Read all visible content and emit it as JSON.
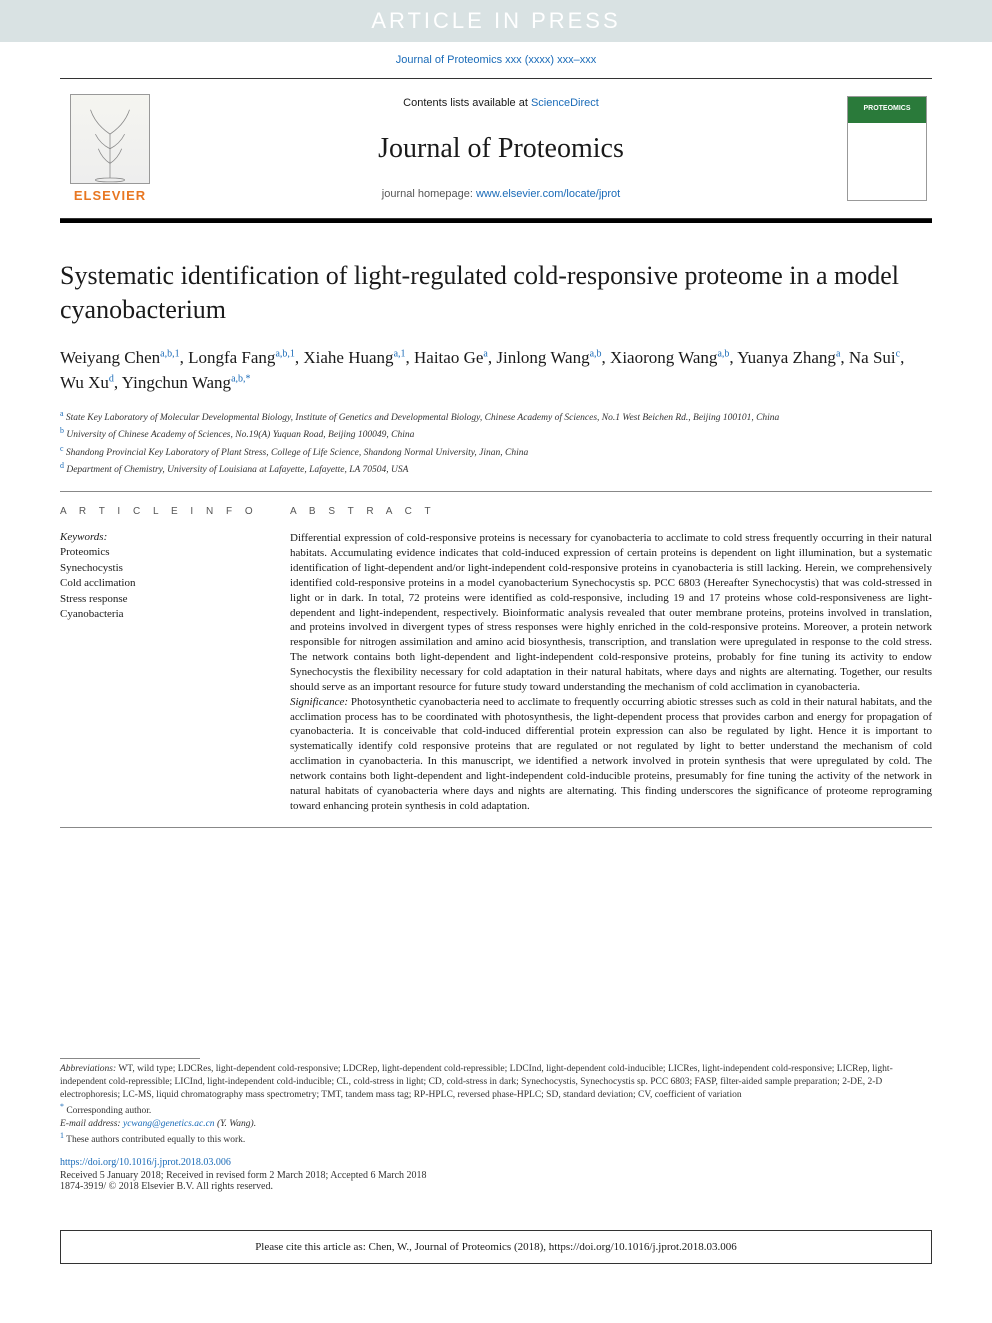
{
  "banner": "ARTICLE IN PRESS",
  "journal_ref": "Journal of Proteomics xxx (xxxx) xxx–xxx",
  "header": {
    "contents_prefix": "Contents lists available at ",
    "contents_link": "ScienceDirect",
    "journal_name": "Journal of Proteomics",
    "homepage_prefix": "journal homepage: ",
    "homepage_url": "www.elsevier.com/locate/jprot",
    "publisher": "ELSEVIER"
  },
  "title": "Systematic identification of light-regulated cold-responsive proteome in a model cyanobacterium",
  "authors": [
    {
      "name": "Weiyang Chen",
      "aff": "a,b,1"
    },
    {
      "name": "Longfa Fang",
      "aff": "a,b,1"
    },
    {
      "name": "Xiahe Huang",
      "aff": "a,1"
    },
    {
      "name": "Haitao Ge",
      "aff": "a"
    },
    {
      "name": "Jinlong Wang",
      "aff": "a,b"
    },
    {
      "name": "Xiaorong Wang",
      "aff": "a,b"
    },
    {
      "name": "Yuanya Zhang",
      "aff": "a"
    },
    {
      "name": "Na Sui",
      "aff": "c"
    },
    {
      "name": "Wu Xu",
      "aff": "d"
    },
    {
      "name": "Yingchun Wang",
      "aff": "a,b,*"
    }
  ],
  "affiliations": [
    {
      "sup": "a",
      "text": "State Key Laboratory of Molecular Developmental Biology, Institute of Genetics and Developmental Biology, Chinese Academy of Sciences, No.1 West Beichen Rd., Beijing 100101, China"
    },
    {
      "sup": "b",
      "text": "University of Chinese Academy of Sciences, No.19(A) Yuquan Road, Beijing 100049, China"
    },
    {
      "sup": "c",
      "text": "Shandong Provincial Key Laboratory of Plant Stress, College of Life Science, Shandong Normal University, Jinan, China"
    },
    {
      "sup": "d",
      "text": "Department of Chemistry, University of Louisiana at Lafayette, Lafayette, LA 70504, USA"
    }
  ],
  "article_info_head": "A R T I C L E  I N F O",
  "abstract_head": "A B S T R A C T",
  "keywords_label": "Keywords:",
  "keywords": [
    "Proteomics",
    "Synechocystis",
    "Cold acclimation",
    "Stress response",
    "Cyanobacteria"
  ],
  "abstract_main": "Differential expression of cold-responsive proteins is necessary for cyanobacteria to acclimate to cold stress frequently occurring in their natural habitats. Accumulating evidence indicates that cold-induced expression of certain proteins is dependent on light illumination, but a systematic identification of light-dependent and/or light-independent cold-responsive proteins in cyanobacteria is still lacking. Herein, we comprehensively identified cold-responsive proteins in a model cyanobacterium Synechocystis sp. PCC 6803 (Hereafter Synechocystis) that was cold-stressed in light or in dark. In total, 72 proteins were identified as cold-responsive, including 19 and 17 proteins whose cold-responsiveness are light-dependent and light-independent, respectively. Bioinformatic analysis revealed that outer membrane proteins, proteins involved in translation, and proteins involved in divergent types of stress responses were highly enriched in the cold-responsive proteins. Moreover, a protein network responsible for nitrogen assimilation and amino acid biosynthesis, transcription, and translation were upregulated in response to the cold stress. The network contains both light-dependent and light-independent cold-responsive proteins, probably for fine tuning its activity to endow Synechocystis the flexibility necessary for cold adaptation in their natural habitats, where days and nights are alternating. Together, our results should serve as an important resource for future study toward understanding the mechanism of cold acclimation in cyanobacteria.",
  "significance_label": "Significance:",
  "abstract_significance": " Photosynthetic cyanobacteria need to acclimate to frequently occurring abiotic stresses such as cold in their natural habitats, and the acclimation process has to be coordinated with photosynthesis, the light-dependent process that provides carbon and energy for propagation of cyanobacteria. It is conceivable that cold-induced differential protein expression can also be regulated by light. Hence it is important to systematically identify cold responsive proteins that are regulated or not regulated by light to better understand the mechanism of cold acclimation in cyanobacteria. In this manuscript, we identified a network involved in protein synthesis that were upregulated by cold. The network contains both light-dependent and light-independent cold-inducible proteins, presumably for fine tuning the activity of the network in natural habitats of cyanobacteria where days and nights are alternating. This finding underscores the significance of proteome reprograming toward enhancing protein synthesis in cold adaptation.",
  "footnotes": {
    "abbrev_label": "Abbreviations:",
    "abbrev_text": " WT, wild type; LDCRes, light-dependent cold-responsive; LDCRep, light-dependent cold-repressible; LDCInd, light-dependent cold-inducible; LICRes, light-independent cold-responsive; LICRep, light-independent cold-repressible; LICInd, light-independent cold-inducible; CL, cold-stress in light; CD, cold-stress in dark; Synechocystis, Synechocystis sp. PCC 6803; FASP, filter-aided sample preparation; 2-DE, 2-D electrophoresis; LC-MS, liquid chromatography mass spectrometry; TMT, tandem mass tag; RP-HPLC, reversed phase-HPLC; SD, standard deviation; CV, coefficient of variation",
    "corr_marker": "*",
    "corr_text": "Corresponding author.",
    "email_label": "E-mail address: ",
    "email": "ycwang@genetics.ac.cn",
    "email_name": " (Y. Wang).",
    "equal_marker": "1",
    "equal_text": " These authors contributed equally to this work."
  },
  "doi": "https://doi.org/10.1016/j.jprot.2018.03.006",
  "received": "Received 5 January 2018; Received in revised form 2 March 2018; Accepted 6 March 2018",
  "copyright": "1874-3919/ © 2018 Elsevier B.V. All rights reserved.",
  "cite_box": "Please cite this article as: Chen, W., Journal of Proteomics (2018), https://doi.org/10.1016/j.jprot.2018.03.006",
  "colors": {
    "link": "#1a6bb8",
    "banner_bg": "#d9e2e3",
    "elsevier_orange": "#e87722"
  }
}
